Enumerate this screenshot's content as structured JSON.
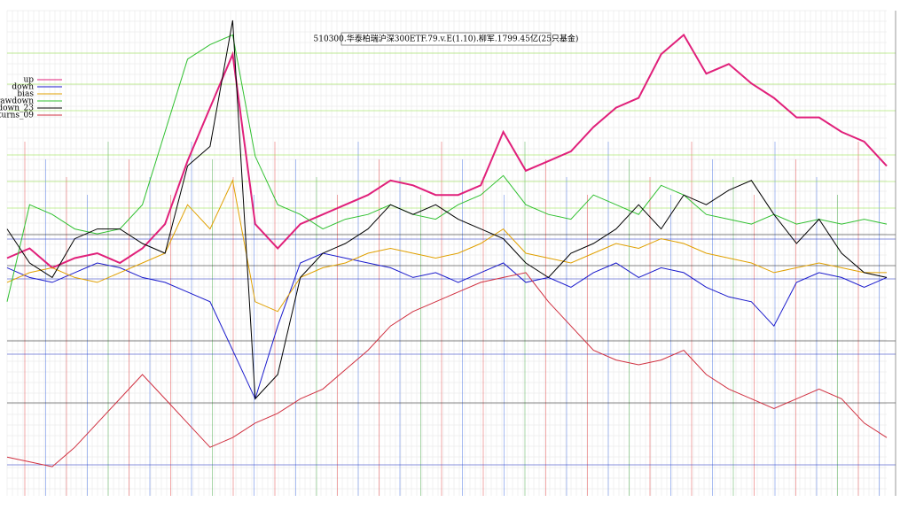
{
  "chart_data": {
    "type": "line",
    "title": "510300.华泰柏瑞沪深300ETF.79.v.E(1.10).柳军.1799.45亿(25只基金)",
    "ylim": [
      0,
      100
    ],
    "grid": true,
    "legend": "left",
    "series": [
      {
        "name": "up",
        "color": "#e0207a",
        "values": [
          49,
          51,
          47,
          49,
          50,
          48,
          51,
          56,
          69,
          80,
          91,
          56,
          51,
          56,
          58,
          60,
          62,
          65,
          64,
          62,
          62,
          64,
          75,
          67,
          69,
          71,
          76,
          80,
          82,
          91,
          95,
          87,
          89,
          85,
          82,
          78,
          78,
          75,
          73,
          68
        ]
      },
      {
        "name": "down",
        "color": "#1a1acc",
        "values": [
          47,
          45,
          44,
          46,
          48,
          47,
          45,
          44,
          42,
          40,
          30,
          20,
          35,
          48,
          50,
          49,
          48,
          47,
          45,
          46,
          44,
          46,
          48,
          44,
          45,
          43,
          46,
          48,
          45,
          47,
          46,
          43,
          41,
          40,
          35,
          44,
          46,
          45,
          43,
          45
        ]
      },
      {
        "name": "bias",
        "color": "#e0a000",
        "values": [
          44,
          46,
          47,
          45,
          44,
          46,
          48,
          50,
          60,
          55,
          65,
          40,
          38,
          45,
          47,
          48,
          50,
          51,
          50,
          49,
          50,
          52,
          55,
          50,
          49,
          48,
          50,
          52,
          51,
          53,
          52,
          50,
          49,
          48,
          46,
          47,
          48,
          47,
          46,
          46
        ]
      },
      {
        "name": "drawdown",
        "color": "#30c030",
        "values": [
          40,
          60,
          58,
          55,
          54,
          55,
          60,
          75,
          90,
          93,
          95,
          70,
          60,
          58,
          55,
          57,
          58,
          60,
          58,
          57,
          60,
          62,
          66,
          60,
          58,
          57,
          62,
          60,
          58,
          64,
          62,
          58,
          57,
          56,
          58,
          56,
          57,
          56,
          57,
          56
        ]
      },
      {
        "name": "drawdown_23",
        "color": "#000000",
        "values": [
          55,
          48,
          45,
          53,
          55,
          55,
          52,
          50,
          68,
          72,
          98,
          20,
          25,
          45,
          50,
          52,
          55,
          60,
          58,
          60,
          57,
          55,
          53,
          48,
          45,
          50,
          52,
          55,
          60,
          55,
          62,
          60,
          63,
          65,
          58,
          52,
          57,
          50,
          46,
          45
        ]
      },
      {
        "name": "turns_09",
        "color": "#d03040",
        "values": [
          8,
          7,
          6,
          10,
          15,
          20,
          25,
          20,
          15,
          10,
          12,
          15,
          17,
          20,
          22,
          26,
          30,
          35,
          38,
          40,
          42,
          44,
          45,
          46,
          40,
          35,
          30,
          28,
          27,
          28,
          30,
          25,
          22,
          20,
          18,
          20,
          22,
          20,
          15,
          12
        ]
      }
    ]
  }
}
